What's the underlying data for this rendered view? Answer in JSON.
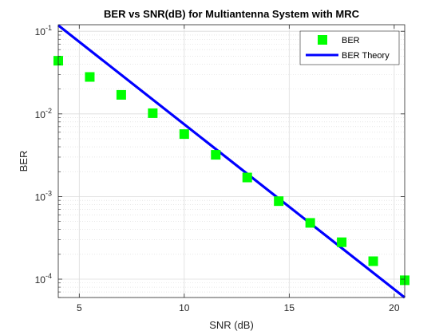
{
  "chart_data": {
    "type": "scatter",
    "title": "BER vs SNR(dB) for Multiantenna System with MRC",
    "xlabel": "SNR (dB)",
    "ylabel": "BER",
    "xlim": [
      4,
      20.5
    ],
    "ylim": [
      6e-05,
      0.12
    ],
    "yscale": "log",
    "xticks": [
      5,
      10,
      15,
      20
    ],
    "xtick_labels": [
      "5",
      "10",
      "15",
      "20"
    ],
    "ytick_labels": [
      {
        "value": 0.1,
        "base": "10",
        "exp": "-1"
      },
      {
        "value": 0.01,
        "base": "10",
        "exp": "-2"
      },
      {
        "value": 0.001,
        "base": "10",
        "exp": "-3"
      },
      {
        "value": 0.0001,
        "base": "10",
        "exp": "-4"
      }
    ],
    "grid": true,
    "minor_grid": true,
    "legend_position": "top-right",
    "series": [
      {
        "name": "BER",
        "kind": "markers",
        "marker": "square",
        "color": "#00ff00",
        "x": [
          4,
          5.5,
          7,
          8.5,
          10,
          11.5,
          13,
          14.5,
          16,
          17.5,
          19,
          20.5
        ],
        "y": [
          0.044,
          0.028,
          0.017,
          0.0102,
          0.0057,
          0.0032,
          0.0017,
          0.00088,
          0.00048,
          0.00028,
          0.000165,
          9.7e-05
        ]
      },
      {
        "name": "BER Theory",
        "kind": "line",
        "color": "#0000ff",
        "x": [
          4,
          20.5
        ],
        "y": [
          0.118,
          6e-05
        ]
      }
    ]
  }
}
